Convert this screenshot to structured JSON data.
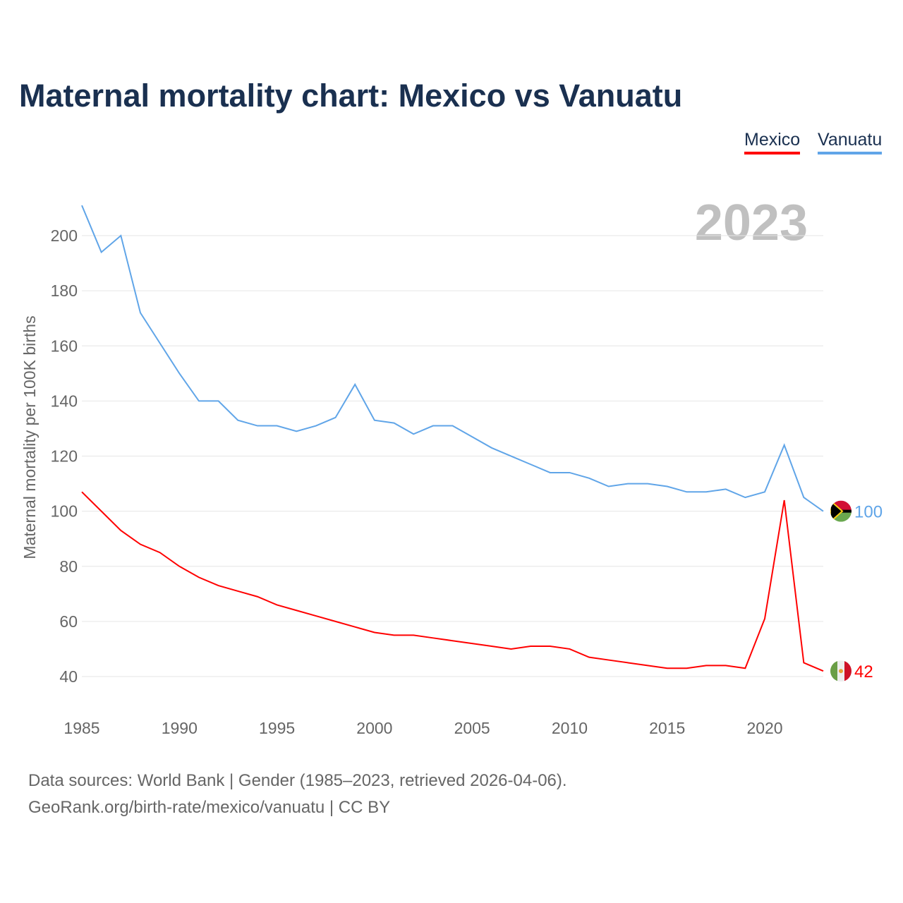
{
  "chart_data": {
    "type": "line",
    "title": "Maternal mortality chart: Mexico vs Vanuatu",
    "ylabel": "Maternal mortality per 100K births",
    "xlabel": "",
    "year_label": "2023",
    "x": [
      1985,
      1986,
      1987,
      1988,
      1989,
      1990,
      1991,
      1992,
      1993,
      1994,
      1995,
      1996,
      1997,
      1998,
      1999,
      2000,
      2001,
      2002,
      2003,
      2004,
      2005,
      2006,
      2007,
      2008,
      2009,
      2010,
      2011,
      2012,
      2013,
      2014,
      2015,
      2016,
      2017,
      2018,
      2019,
      2020,
      2021,
      2022,
      2023
    ],
    "xlim": [
      1985,
      2023
    ],
    "ylim": [
      40,
      215
    ],
    "xticks": [
      "1985",
      "1990",
      "1995",
      "2000",
      "2005",
      "2010",
      "2015",
      "2020"
    ],
    "yticks": [
      "40",
      "60",
      "80",
      "100",
      "120",
      "140",
      "160",
      "180",
      "200"
    ],
    "grid": true,
    "legend_position": "top-right",
    "series": [
      {
        "name": "Mexico",
        "color": "#ff0000",
        "end_label": "42",
        "values": [
          107,
          100,
          93,
          88,
          85,
          80,
          76,
          73,
          71,
          69,
          66,
          64,
          62,
          60,
          58,
          56,
          55,
          55,
          54,
          53,
          52,
          51,
          50,
          51,
          51,
          50,
          47,
          46,
          45,
          44,
          43,
          43,
          44,
          44,
          43,
          61,
          104,
          45,
          42
        ]
      },
      {
        "name": "Vanuatu",
        "color": "#60a5e8",
        "end_label": "100",
        "values": [
          211,
          194,
          200,
          172,
          161,
          150,
          140,
          140,
          133,
          131,
          131,
          129,
          131,
          134,
          146,
          133,
          132,
          128,
          131,
          131,
          127,
          123,
          120,
          117,
          114,
          114,
          112,
          109,
          110,
          110,
          109,
          107,
          107,
          108,
          105,
          107,
          124,
          105,
          100
        ]
      }
    ]
  },
  "source_lines": [
    "Data sources: World Bank | Gender (1985–2023, retrieved 2026-04-06).",
    "GeoRank.org/birth-rate/mexico/vanuatu | CC BY"
  ]
}
